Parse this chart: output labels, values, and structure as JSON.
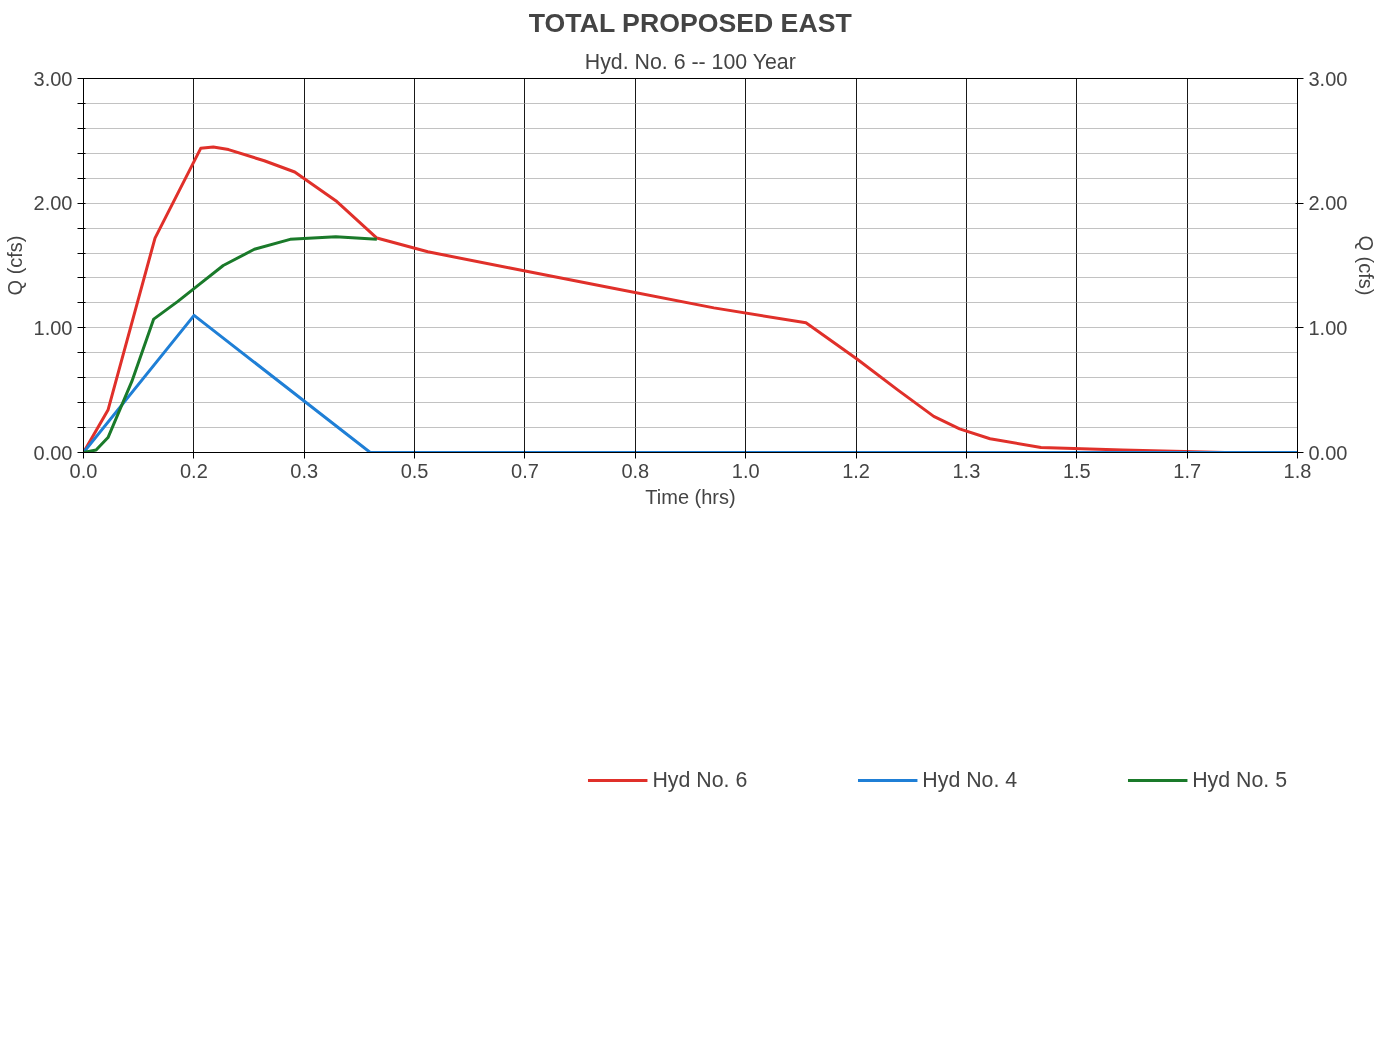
{
  "chart_data": {
    "type": "line",
    "title": "TOTAL PROPOSED EAST",
    "subtitle": "Hyd. No. 6 -- 100 Year",
    "xlabel": "Time (hrs)",
    "ylabel": "Q (cfs)",
    "y2label": "Q (cfs)",
    "xlim": [
      0,
      1.8333
    ],
    "xticks": [
      {
        "value": 0,
        "label": "0.0"
      },
      {
        "value": 0.1667,
        "label": "0.2"
      },
      {
        "value": 0.3333,
        "label": "0.3"
      },
      {
        "value": 0.5,
        "label": "0.5"
      },
      {
        "value": 0.6667,
        "label": "0.7"
      },
      {
        "value": 0.8333,
        "label": "0.8"
      },
      {
        "value": 1.0,
        "label": "1.0"
      },
      {
        "value": 1.1667,
        "label": "1.2"
      },
      {
        "value": 1.3333,
        "label": "1.3"
      },
      {
        "value": 1.5,
        "label": "1.5"
      },
      {
        "value": 1.6667,
        "label": "1.7"
      },
      {
        "value": 1.8333,
        "label": "1.8"
      }
    ],
    "ylim": [
      0,
      3
    ],
    "yticks": [
      {
        "value": 0,
        "label": "0.00"
      },
      {
        "value": 0.2,
        "label": null
      },
      {
        "value": 0.4,
        "label": null
      },
      {
        "value": 0.6,
        "label": null
      },
      {
        "value": 0.8,
        "label": null
      },
      {
        "value": 1,
        "label": "1.00"
      },
      {
        "value": 1.2,
        "label": null
      },
      {
        "value": 1.4,
        "label": null
      },
      {
        "value": 1.6,
        "label": null
      },
      {
        "value": 1.8,
        "label": null
      },
      {
        "value": 2,
        "label": "2.00"
      },
      {
        "value": 2.2,
        "label": null
      },
      {
        "value": 2.4,
        "label": null
      },
      {
        "value": 2.6,
        "label": null
      },
      {
        "value": 2.8,
        "label": null
      },
      {
        "value": 3,
        "label": "3.00"
      }
    ],
    "y2lim": [
      0,
      3
    ],
    "y2ticks": [
      {
        "value": 0,
        "label": "0.00"
      },
      {
        "value": 1,
        "label": "1.00"
      },
      {
        "value": 2,
        "label": "2.00"
      },
      {
        "value": 3,
        "label": "3.00"
      }
    ],
    "grid": true,
    "legend": "bottom",
    "marker": "none",
    "line_style": "solid",
    "series": [
      {
        "name": "Hyd No. 6",
        "color": "#e0302a",
        "x": [
          0,
          0.037,
          0.108,
          0.177,
          0.196,
          0.219,
          0.273,
          0.319,
          0.381,
          0.443,
          0.52,
          0.644,
          0.798,
          0.952,
          1.091,
          1.168,
          1.23,
          1.284,
          1.323,
          1.369,
          1.446,
          1.569,
          1.724,
          1.8333
        ],
        "values": [
          0,
          0.34,
          1.72,
          2.44,
          2.45,
          2.43,
          2.34,
          2.25,
          2.02,
          1.72,
          1.61,
          1.48,
          1.32,
          1.16,
          1.04,
          0.75,
          0.5,
          0.29,
          0.19,
          0.11,
          0.04,
          0.02,
          0.0,
          0.0
        ]
      },
      {
        "name": "Hyd No. 4",
        "color": "#1f7fd6",
        "x": [
          0,
          0.167,
          0.433,
          1.8333
        ],
        "values": [
          0,
          1.1,
          0,
          0
        ]
      },
      {
        "name": "Hyd No. 5",
        "color": "#1a7a2a",
        "x": [
          0,
          0.019,
          0.037,
          0.073,
          0.106,
          0.142,
          0.173,
          0.211,
          0.258,
          0.312,
          0.381,
          0.443
        ],
        "values": [
          0,
          0.02,
          0.12,
          0.57,
          1.07,
          1.21,
          1.34,
          1.5,
          1.63,
          1.71,
          1.73,
          1.71
        ]
      }
    ]
  }
}
